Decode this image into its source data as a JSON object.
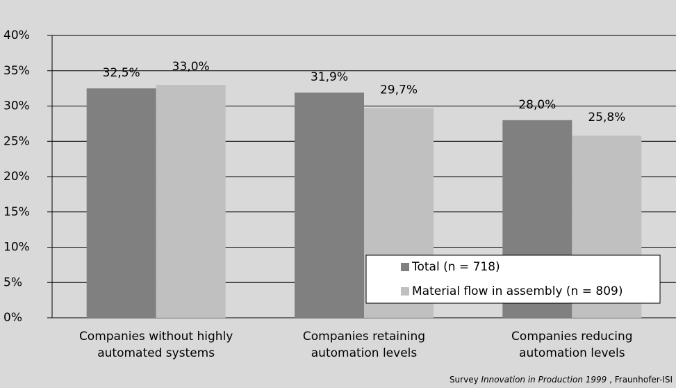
{
  "chart_data": {
    "type": "bar",
    "categories": [
      "Companies without highly\nautomated systems",
      "Companies retaining\nautomation levels",
      "Companies reducing\nautomation levels"
    ],
    "series": [
      {
        "name": "Total (n = 718)",
        "color": "#808080",
        "values": [
          32.5,
          31.9,
          28.0
        ],
        "value_labels": [
          "32,5%",
          "31,9%",
          "28,0%"
        ]
      },
      {
        "name": "Material flow in assembly (n = 809)",
        "color": "#c0c0c0",
        "values": [
          33.0,
          29.7,
          25.8
        ],
        "value_labels": [
          "33,0%",
          "29,7%",
          "25,8%"
        ]
      }
    ],
    "ylim": [
      0,
      40
    ],
    "yticks": [
      {
        "value": 0,
        "label": "0%"
      },
      {
        "value": 5,
        "label": "5%"
      },
      {
        "value": 10,
        "label": "10%"
      },
      {
        "value": 15,
        "label": "15%"
      },
      {
        "value": 20,
        "label": "20%"
      },
      {
        "value": 25,
        "label": "25%"
      },
      {
        "value": 30,
        "label": "30%"
      },
      {
        "value": 35,
        "label": "35%"
      },
      {
        "value": 40,
        "label": "40%"
      }
    ],
    "grid": true,
    "legend": "bottom-right",
    "source": {
      "prefix": "Survey ",
      "title": "Innovation in Production 1999",
      "suffix": " , Fraunhofer-ISI"
    }
  }
}
